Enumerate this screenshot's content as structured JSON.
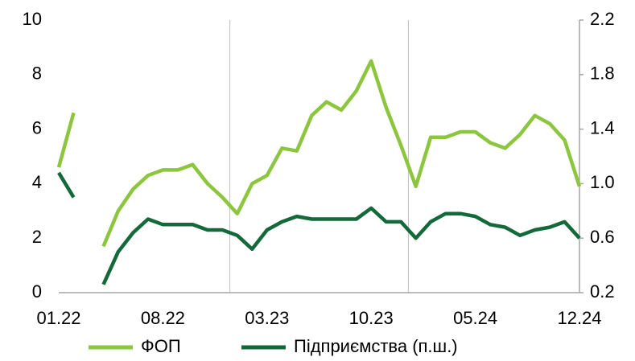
{
  "chart_data": {
    "type": "line",
    "categories": [
      "01.22",
      null,
      null,
      null,
      null,
      null,
      null,
      "08.22",
      null,
      null,
      null,
      null,
      null,
      null,
      "03.23",
      null,
      null,
      null,
      null,
      null,
      null,
      "10.23",
      null,
      null,
      null,
      null,
      null,
      null,
      "05.24",
      null,
      null,
      null,
      null,
      null,
      null,
      "12.24"
    ],
    "series": [
      {
        "name": "ФОП",
        "color": "#8cc63f",
        "values": [
          4.6,
          6.6,
          null,
          1.7,
          3.0,
          3.8,
          4.3,
          4.5,
          4.5,
          4.7,
          4.0,
          3.5,
          2.9,
          4.0,
          4.3,
          5.3,
          5.2,
          6.5,
          7.0,
          6.7,
          7.4,
          8.5,
          6.8,
          5.4,
          3.9,
          5.7,
          5.7,
          5.9,
          5.9,
          5.5,
          5.3,
          5.8,
          6.5,
          6.2,
          5.6,
          3.9
        ]
      },
      {
        "name": "Підприємства (п.ш.)",
        "color": "#13693a",
        "axis": "y2",
        "values": [
          1.08,
          0.9,
          null,
          0.26,
          0.5,
          0.64,
          0.74,
          0.7,
          0.7,
          0.7,
          0.66,
          0.66,
          0.62,
          0.52,
          0.66,
          0.72,
          0.76,
          0.74,
          0.74,
          0.74,
          0.74,
          0.82,
          0.72,
          0.72,
          0.6,
          0.72,
          0.78,
          0.78,
          0.76,
          0.7,
          0.68,
          0.62,
          0.66,
          0.68,
          0.72,
          0.6
        ]
      }
    ],
    "ylim": [
      0,
      10
    ],
    "yticks": [
      0,
      2,
      4,
      6,
      8,
      10
    ],
    "y2lim": [
      0.2,
      2.2
    ],
    "y2ticks": [
      0.2,
      0.6,
      {
        "value": 1,
        "label": "1.0"
      },
      1.4,
      1.8,
      2.2
    ],
    "legend": "bottom"
  }
}
